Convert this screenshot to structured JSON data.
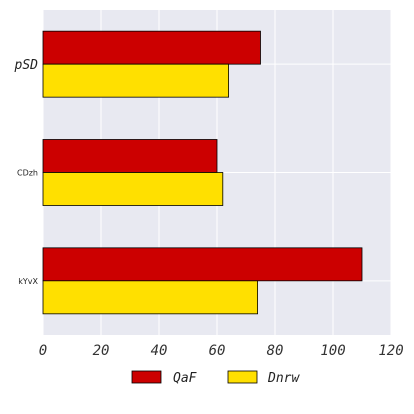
{
  "chart_data": {
    "type": "bar",
    "orientation": "horizontal",
    "categories": [
      "pSD",
      "CDzh",
      "kYvX"
    ],
    "series": [
      {
        "name": "QaF",
        "color": "#cc0000",
        "values": [
          75,
          60,
          110
        ]
      },
      {
        "name": "Dnrw",
        "color": "#ffe000",
        "values": [
          64,
          62,
          74
        ]
      }
    ],
    "xlim": [
      0,
      120
    ],
    "xticks": [
      "0",
      "20",
      "40",
      "60",
      "80",
      "100",
      "120"
    ],
    "grid": true,
    "legend_position": "bottom-center",
    "background_color": "#e8e9f1"
  }
}
